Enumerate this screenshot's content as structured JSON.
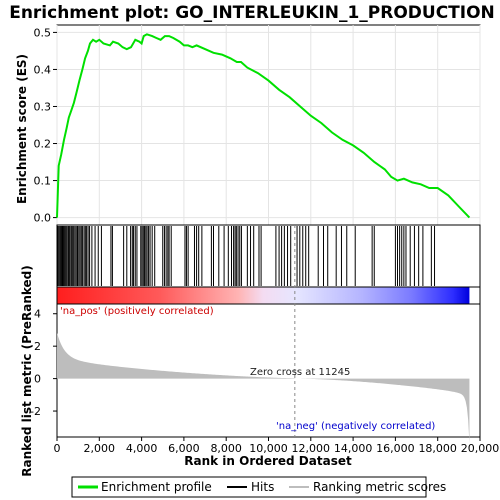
{
  "chart_data": {
    "type": "line",
    "title": "Enrichment plot: GO_INTERLEUKIN_1_PRODUCTION",
    "xlabel": "Rank in Ordered Dataset",
    "ylabel_top": "Enrichment score (ES)",
    "ylabel_bottom": "Ranked list metric (PreRanked)",
    "xlim": [
      0,
      20000
    ],
    "x_ticks": [
      0,
      2000,
      4000,
      6000,
      8000,
      10000,
      12000,
      14000,
      16000,
      18000,
      20000
    ],
    "x_tick_labels": [
      "0",
      "2,000",
      "4,000",
      "6,000",
      "8,000",
      "10,000",
      "12,000",
      "14,000",
      "16,000",
      "18,000",
      "20,000"
    ],
    "es_ylim": [
      -0.02,
      0.52
    ],
    "es_ticks": [
      0.0,
      0.1,
      0.2,
      0.3,
      0.4,
      0.5
    ],
    "es_tick_labels": [
      "0.0",
      "0.1",
      "0.2",
      "0.3",
      "0.4",
      "0.5"
    ],
    "metric_ylim": [
      -3.6,
      4.6
    ],
    "metric_ticks": [
      4,
      2,
      0,
      -2
    ],
    "metric_tick_labels": [
      "4",
      "2",
      "0",
      "-2"
    ],
    "total_genes": 19500,
    "zero_cross": 11245,
    "zero_cross_label": "Zero cross at 11245",
    "pos_label": "'na_pos' (positively correlated)",
    "neg_label": "'na_neg' (negatively correlated)",
    "pos_color": "#cc0000",
    "neg_color": "#0000cc",
    "es_color": "#00e000",
    "metric_fill": "#bdbdbd",
    "series": [
      {
        "name": "Enrichment profile",
        "points": [
          [
            0,
            0.0
          ],
          [
            80,
            0.14
          ],
          [
            200,
            0.17
          ],
          [
            330,
            0.21
          ],
          [
            450,
            0.24
          ],
          [
            560,
            0.27
          ],
          [
            680,
            0.29
          ],
          [
            800,
            0.31
          ],
          [
            930,
            0.34
          ],
          [
            1060,
            0.37
          ],
          [
            1200,
            0.4
          ],
          [
            1330,
            0.43
          ],
          [
            1460,
            0.45
          ],
          [
            1560,
            0.47
          ],
          [
            1700,
            0.48
          ],
          [
            1850,
            0.475
          ],
          [
            2000,
            0.48
          ],
          [
            2200,
            0.47
          ],
          [
            2500,
            0.465
          ],
          [
            2650,
            0.475
          ],
          [
            2900,
            0.47
          ],
          [
            3100,
            0.46
          ],
          [
            3300,
            0.455
          ],
          [
            3500,
            0.46
          ],
          [
            3700,
            0.48
          ],
          [
            3900,
            0.475
          ],
          [
            4000,
            0.47
          ],
          [
            4100,
            0.49
          ],
          [
            4250,
            0.495
          ],
          [
            4500,
            0.49
          ],
          [
            4700,
            0.485
          ],
          [
            4900,
            0.48
          ],
          [
            5100,
            0.49
          ],
          [
            5300,
            0.49
          ],
          [
            5500,
            0.485
          ],
          [
            5800,
            0.475
          ],
          [
            6000,
            0.465
          ],
          [
            6200,
            0.465
          ],
          [
            6400,
            0.46
          ],
          [
            6600,
            0.465
          ],
          [
            7000,
            0.455
          ],
          [
            7400,
            0.445
          ],
          [
            7800,
            0.44
          ],
          [
            8200,
            0.43
          ],
          [
            8500,
            0.42
          ],
          [
            8700,
            0.42
          ],
          [
            9000,
            0.405
          ],
          [
            9500,
            0.39
          ],
          [
            10000,
            0.37
          ],
          [
            10500,
            0.345
          ],
          [
            11000,
            0.325
          ],
          [
            11500,
            0.3
          ],
          [
            12000,
            0.275
          ],
          [
            12500,
            0.255
          ],
          [
            13000,
            0.23
          ],
          [
            13500,
            0.21
          ],
          [
            14000,
            0.195
          ],
          [
            14500,
            0.175
          ],
          [
            15000,
            0.15
          ],
          [
            15500,
            0.13
          ],
          [
            15800,
            0.11
          ],
          [
            16100,
            0.1
          ],
          [
            16400,
            0.105
          ],
          [
            16800,
            0.095
          ],
          [
            17200,
            0.09
          ],
          [
            17600,
            0.08
          ],
          [
            18000,
            0.08
          ],
          [
            18500,
            0.06
          ],
          [
            19000,
            0.03
          ],
          [
            19500,
            0.0
          ]
        ]
      }
    ],
    "hits": [
      30,
      60,
      110,
      170,
      210,
      260,
      310,
      360,
      410,
      460,
      520,
      570,
      620,
      680,
      740,
      790,
      850,
      910,
      970,
      1030,
      1090,
      1150,
      1210,
      1280,
      1340,
      1400,
      1470,
      1540,
      1650,
      1800,
      1950,
      2100,
      2550,
      2620,
      3150,
      3300,
      3480,
      3560,
      3620,
      3700,
      3780,
      3960,
      4020,
      4080,
      4140,
      4200,
      4260,
      4330,
      4400,
      4500,
      4620,
      5000,
      5080,
      5160,
      5240,
      5300,
      5400,
      6050,
      6120,
      6200,
      6500,
      6600,
      6700,
      6850,
      7300,
      7400,
      7650,
      7900,
      8100,
      8250,
      8350,
      8420,
      8480,
      8560,
      8640,
      8720,
      9000,
      9150,
      9300,
      9550,
      9650,
      10350,
      10500,
      10620,
      10750,
      10900,
      11050,
      11350,
      11480,
      11620,
      11760,
      11900,
      12350,
      12600,
      12800,
      13200,
      13450,
      13700,
      14100,
      14900,
      15000,
      16000,
      16100,
      16200,
      16300,
      16400,
      16500,
      16700,
      16900,
      17100,
      17300,
      17700,
      17850
    ],
    "legend": [
      {
        "label": "Enrichment profile",
        "color": "#00e000"
      },
      {
        "label": "Hits",
        "color": "#000000"
      },
      {
        "label": "Ranking metric scores",
        "color": "#bdbdbd"
      }
    ]
  }
}
